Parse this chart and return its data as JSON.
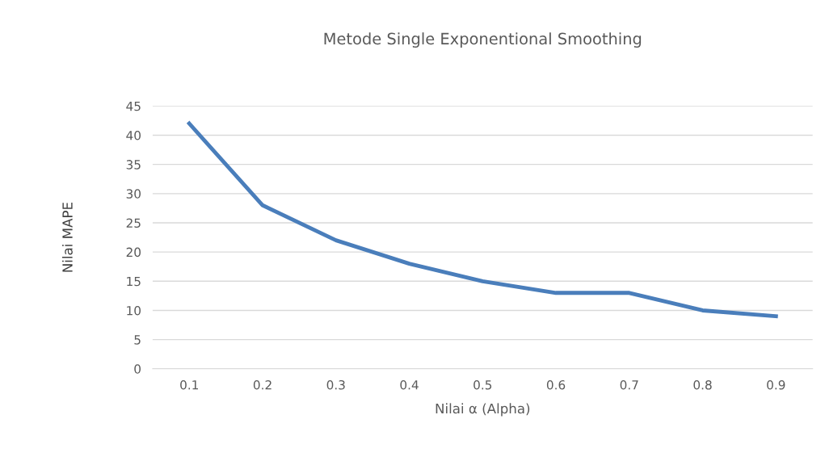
{
  "chart_data": {
    "type": "line",
    "title": "Metode Single Exponentional Smoothing",
    "xlabel": "Nilai α (Alpha)",
    "ylabel": "Nilai MAPE",
    "categories": [
      "0.1",
      "0.2",
      "0.3",
      "0.4",
      "0.5",
      "0.6",
      "0.7",
      "0.8",
      "0.9"
    ],
    "series": [
      {
        "color": "#4a7ebb",
        "values": [
          42,
          28,
          22,
          18,
          15,
          13,
          13,
          10,
          9
        ]
      }
    ],
    "ylim": [
      0,
      45
    ],
    "yticks": [
      0,
      5,
      10,
      15,
      20,
      25,
      30,
      35,
      40,
      45
    ],
    "grid": "y",
    "marker": "none",
    "line_style": "solid"
  }
}
